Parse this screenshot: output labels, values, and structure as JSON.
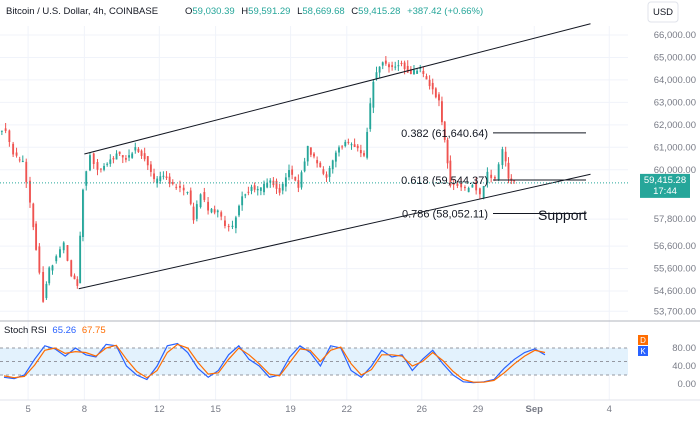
{
  "header": {
    "symbol": "Bitcoin / U.S. Dollar, 4h, COINBASE",
    "o_label": "O",
    "o_value": "59,030.39",
    "h_label": "H",
    "h_value": "59,591.29",
    "l_label": "L",
    "l_value": "58,669.68",
    "c_label": "C",
    "c_value": "59,415.28",
    "change": "+387.42 (+0.66%)",
    "currency": "USD"
  },
  "price_tag": {
    "price": "59,415.28",
    "countdown": "17:44"
  },
  "chart_data": [
    {
      "type": "candlestick",
      "title": "Bitcoin / U.S. Dollar, 4h, COINBASE",
      "ylim": [
        53400,
        66400
      ],
      "y_ticks": [
        "66,000.00",
        "65,000.00",
        "64,000.00",
        "63,000.00",
        "62,000.00",
        "61,000.00",
        "60,000.00",
        "57,800.00",
        "56,600.00",
        "55,600.00",
        "54,600.00",
        "53,700.00"
      ],
      "x_ticks": [
        "5",
        "8",
        "12",
        "15",
        "19",
        "22",
        "26",
        "29",
        "Sep",
        "4"
      ],
      "x_tick_dates": [
        5,
        8,
        12,
        15,
        19,
        22,
        26,
        29,
        32,
        36
      ],
      "date_range": [
        3.5,
        37
      ],
      "close_path": [
        [
          3.5,
          61800
        ],
        [
          3.9,
          61700
        ],
        [
          4.3,
          60700
        ],
        [
          4.8,
          60300
        ],
        [
          5.2,
          58600
        ],
        [
          5.5,
          56500
        ],
        [
          5.9,
          54200
        ],
        [
          6.2,
          55600
        ],
        [
          6.6,
          56100
        ],
        [
          7,
          56700
        ],
        [
          7.4,
          55300
        ],
        [
          7.7,
          54900
        ],
        [
          8.0,
          59200
        ],
        [
          8.4,
          60700
        ],
        [
          8.8,
          60000
        ],
        [
          9.3,
          60300
        ],
        [
          9.8,
          60700
        ],
        [
          10.3,
          60500
        ],
        [
          10.8,
          60900
        ],
        [
          11.3,
          60500
        ],
        [
          11.8,
          59500
        ],
        [
          12.3,
          59800
        ],
        [
          12.8,
          59300
        ],
        [
          13.2,
          59100
        ],
        [
          13.6,
          59000
        ],
        [
          13.9,
          57800
        ],
        [
          14.3,
          59000
        ],
        [
          14.7,
          58200
        ],
        [
          15.2,
          58100
        ],
        [
          15.6,
          57600
        ],
        [
          16.0,
          57400
        ],
        [
          16.5,
          58900
        ],
        [
          17,
          59200
        ],
        [
          17.5,
          59100
        ],
        [
          18.0,
          59600
        ],
        [
          18.5,
          59000
        ],
        [
          19.0,
          60000
        ],
        [
          19.5,
          59300
        ],
        [
          20.0,
          61000
        ],
        [
          20.5,
          60300
        ],
        [
          21.0,
          59700
        ],
        [
          21.5,
          60800
        ],
        [
          22.0,
          61200
        ],
        [
          22.5,
          61000
        ],
        [
          23.0,
          60600
        ],
        [
          23.5,
          64000
        ],
        [
          24.0,
          64800
        ],
        [
          24.5,
          64600
        ],
        [
          25.0,
          64700
        ],
        [
          25.5,
          64300
        ],
        [
          26.0,
          64500
        ],
        [
          26.5,
          63800
        ],
        [
          27.0,
          63000
        ],
        [
          27.3,
          61300
        ],
        [
          27.6,
          59300
        ],
        [
          28.0,
          59300
        ],
        [
          28.4,
          59100
        ],
        [
          28.8,
          59400
        ],
        [
          29.2,
          58800
        ],
        [
          29.6,
          59800
        ],
        [
          30.0,
          59600
        ],
        [
          30.4,
          60900
        ],
        [
          30.7,
          59700
        ],
        [
          31.0,
          59400
        ]
      ],
      "current_price": 59415.28,
      "trend_channel": {
        "upper": [
          [
            8,
            60700
          ],
          [
            35,
            66500
          ]
        ],
        "lower": [
          [
            7.7,
            54700
          ],
          [
            35,
            59800
          ]
        ]
      },
      "fibonacci": [
        {
          "label": "0.382 (61,640.64)",
          "level": 61640.64
        },
        {
          "label": "0.618 (59,544.37)",
          "level": 59544.37
        },
        {
          "label": "0.786 (58,052.11)",
          "level": 58052.11
        }
      ],
      "annotation": "Support"
    },
    {
      "type": "line",
      "title": "Stoch RSI",
      "series": [
        {
          "name": "K",
          "value_label": "65.26",
          "color": "#2962ff",
          "values": [
            15,
            12,
            20,
            55,
            85,
            78,
            62,
            80,
            65,
            60,
            88,
            85,
            40,
            20,
            10,
            40,
            85,
            90,
            70,
            35,
            15,
            30,
            65,
            85,
            55,
            40,
            15,
            20,
            60,
            85,
            70,
            40,
            85,
            80,
            30,
            15,
            40,
            75,
            60,
            65,
            30,
            55,
            75,
            45,
            20,
            5,
            3,
            5,
            10,
            35,
            55,
            70,
            78,
            65
          ]
        },
        {
          "name": "D",
          "value_label": "67.75",
          "color": "#ff6d00",
          "values": [
            18,
            14,
            17,
            42,
            75,
            80,
            68,
            72,
            70,
            62,
            80,
            86,
            55,
            28,
            14,
            30,
            70,
            88,
            80,
            48,
            22,
            25,
            55,
            80,
            65,
            45,
            22,
            18,
            48,
            78,
            75,
            50,
            75,
            82,
            45,
            20,
            32,
            65,
            65,
            62,
            40,
            50,
            70,
            52,
            28,
            10,
            4,
            4,
            8,
            25,
            45,
            62,
            75,
            70
          ]
        }
      ],
      "ylim": [
        0,
        100
      ],
      "band": [
        20,
        80
      ],
      "y_ticks": [
        "80.00",
        "40.00",
        "0.00"
      ],
      "badges": [
        "D",
        "K"
      ]
    }
  ],
  "colors": {
    "up": "#26a69a",
    "down": "#ef5350",
    "line": "#131722",
    "price_tag": "#26a69a",
    "stoch_k": "#2962ff",
    "stoch_d": "#ff6d00",
    "band_fill": "#e3f2fd"
  }
}
